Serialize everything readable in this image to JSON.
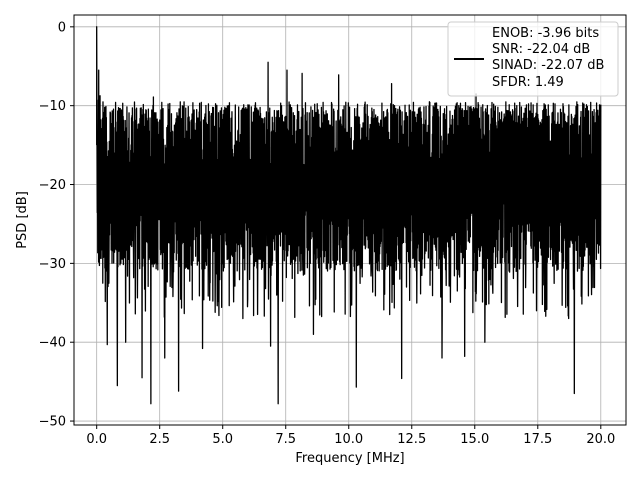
{
  "chart_data": {
    "type": "line",
    "xlabel": "Frequency [MHz]",
    "ylabel": "PSD [dB]",
    "xlim": [
      -0.9,
      21.0
    ],
    "ylim": [
      -50.5,
      1.5
    ],
    "xticks": [
      0.0,
      2.5,
      5.0,
      7.5,
      10.0,
      12.5,
      15.0,
      17.5,
      20.0
    ],
    "xtick_labels": [
      "0.0",
      "2.5",
      "5.0",
      "7.5",
      "10.0",
      "12.5",
      "15.0",
      "17.5",
      "20.0"
    ],
    "yticks": [
      0,
      -10,
      -20,
      -30,
      -40,
      -50
    ],
    "ytick_labels": [
      "0",
      "−10",
      "−20",
      "−30",
      "−40",
      "−50"
    ],
    "grid": true,
    "legend_position": "top-right",
    "series": [
      {
        "color": "#000000",
        "x_range": [
          0.0,
          20.0
        ],
        "max_value": 0.0,
        "min_value": -48.0,
        "typical_range": [
          -30,
          -8
        ]
      }
    ],
    "legend_entries": [
      "ENOB: -3.96 bits",
      "SNR: -22.04 dB",
      "SINAD: -22.07 dB",
      "SFDR: 1.49"
    ],
    "deep_nulls": [
      {
        "x": 0.42,
        "y": -40.3
      },
      {
        "x": 0.82,
        "y": -45.5
      },
      {
        "x": 1.15,
        "y": -40.0
      },
      {
        "x": 1.8,
        "y": -44.5
      },
      {
        "x": 2.15,
        "y": -47.8
      },
      {
        "x": 2.7,
        "y": -42.0
      },
      {
        "x": 3.25,
        "y": -46.2
      },
      {
        "x": 4.2,
        "y": -40.8
      },
      {
        "x": 5.8,
        "y": -37.0
      },
      {
        "x": 6.9,
        "y": -40.5
      },
      {
        "x": 7.2,
        "y": -47.8
      },
      {
        "x": 8.6,
        "y": -39.0
      },
      {
        "x": 10.3,
        "y": -45.7
      },
      {
        "x": 12.1,
        "y": -44.6
      },
      {
        "x": 13.7,
        "y": -42.0
      },
      {
        "x": 14.6,
        "y": -41.8
      },
      {
        "x": 15.4,
        "y": -40.0
      },
      {
        "x": 18.95,
        "y": -46.5
      }
    ],
    "peaks": [
      {
        "x": 0.0,
        "y": 0.0
      },
      {
        "x": 0.08,
        "y": -5.5
      },
      {
        "x": 2.25,
        "y": -8.9
      },
      {
        "x": 6.8,
        "y": -4.5
      },
      {
        "x": 7.55,
        "y": -5.5
      },
      {
        "x": 8.15,
        "y": -5.9
      },
      {
        "x": 9.6,
        "y": -6.1
      },
      {
        "x": 11.7,
        "y": -7.2
      },
      {
        "x": 15.05,
        "y": -8.5
      }
    ]
  }
}
